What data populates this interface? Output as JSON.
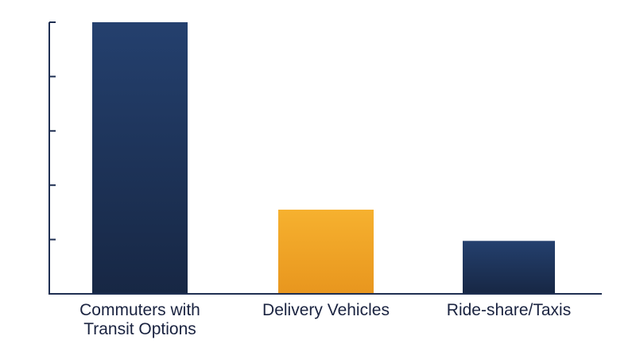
{
  "chart_data": {
    "type": "bar",
    "title": "",
    "xlabel": "",
    "ylabel": "",
    "categories": [
      "Commuters with Transit Options",
      "Delivery Vehicles",
      "Ride-share/Taxis"
    ],
    "category_lines": [
      [
        "Commuters with",
        "Transit Options"
      ],
      [
        "Delivery Vehicles"
      ],
      [
        "Ride-share/Taxis"
      ]
    ],
    "values": [
      100,
      31,
      19.5
    ],
    "ylim": [
      0,
      100
    ],
    "y_tick_values": [
      0,
      20,
      40,
      60,
      80,
      100
    ],
    "y_tick_labels_shown": false,
    "grid": false,
    "legend": "none",
    "bar_colors": [
      "navy-gradient",
      "orange-gradient",
      "navy-gradient"
    ],
    "colors": {
      "navy_top": "#24406e",
      "navy_bottom": "#172744",
      "orange_top": "#f6b12f",
      "orange_bottom": "#e8961e",
      "axis": "#1f2f52",
      "text": "#1a2340"
    }
  }
}
